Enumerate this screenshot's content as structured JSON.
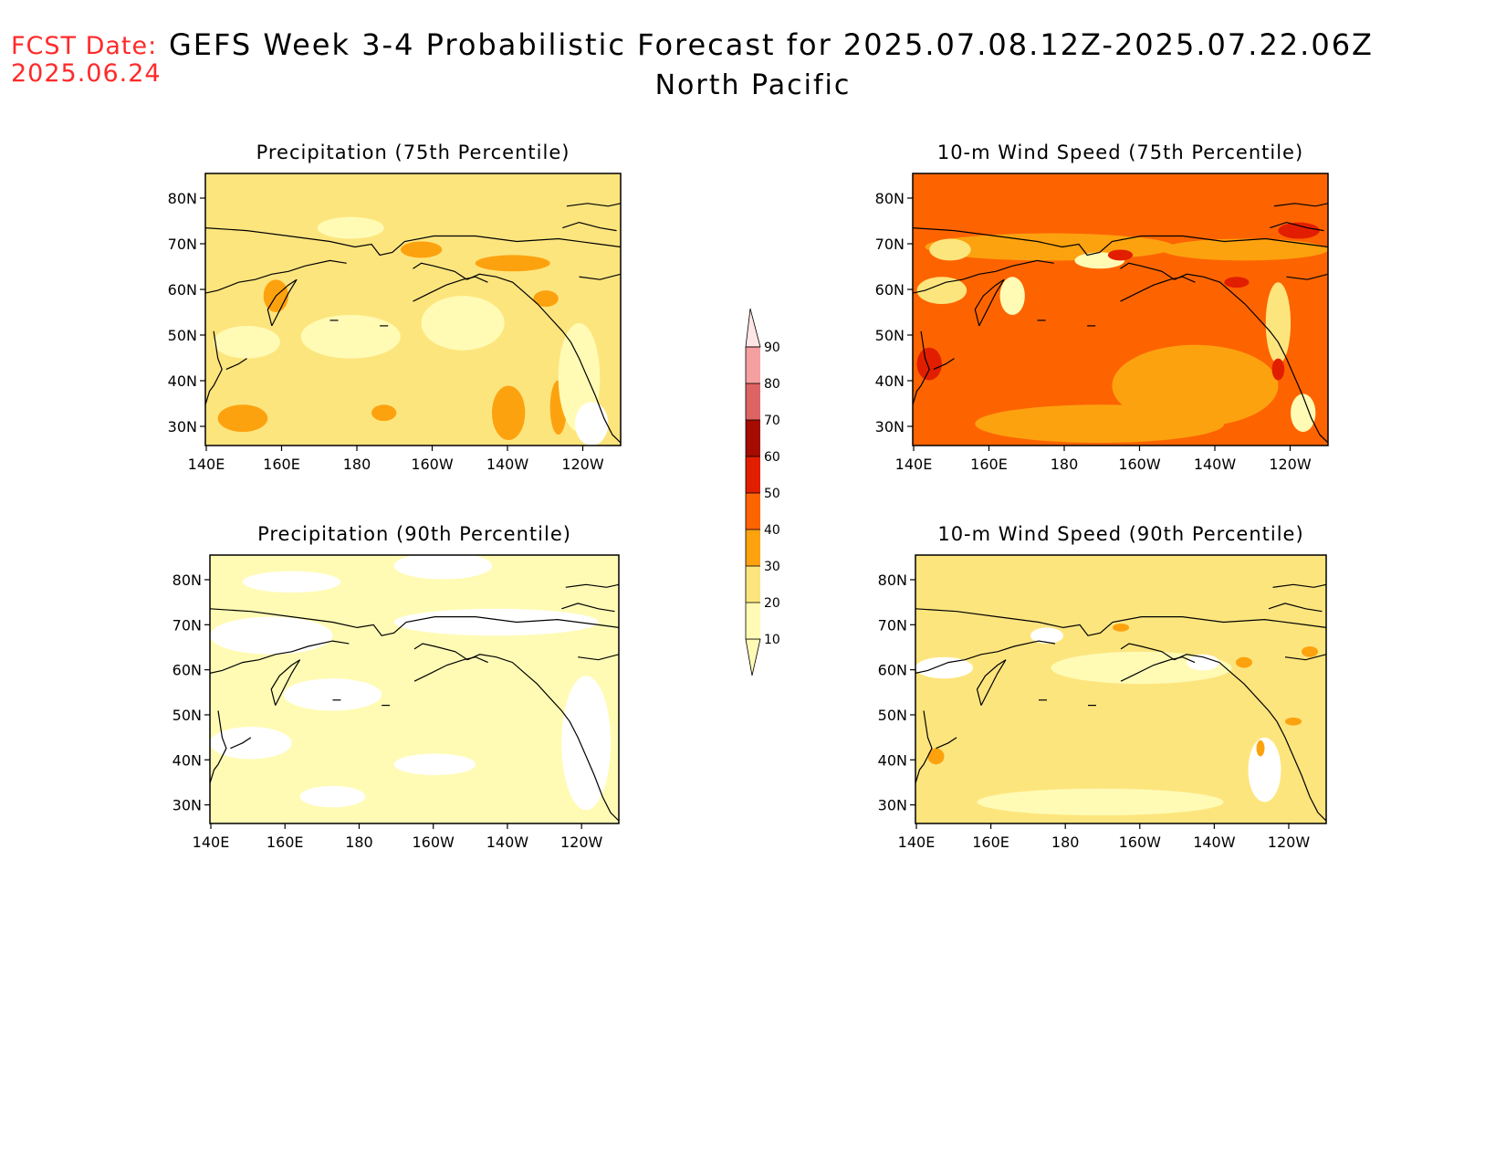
{
  "header": {
    "fcst_label": "FCST Date:",
    "fcst_date": "2025.06.24",
    "title": "GEFS Week 3-4 Probabilistic Forecast for 2025.07.08.12Z-2025.07.22.06Z",
    "subtitle": "North Pacific"
  },
  "map": {
    "lon_ticks": [
      "140E",
      "160E",
      "180",
      "160W",
      "140W",
      "120W"
    ],
    "lat_ticks": [
      "80N",
      "70N",
      "60N",
      "50N",
      "40N",
      "30N"
    ]
  },
  "panels": [
    {
      "id": "precip-75",
      "title": "Precipitation (75th Percentile)",
      "base_level": 20
    },
    {
      "id": "wind-75",
      "title": "10-m Wind Speed (75th Percentile)",
      "base_level": 40
    },
    {
      "id": "precip-90",
      "title": "Precipitation (90th Percentile)",
      "base_level": 10
    },
    {
      "id": "wind-90",
      "title": "10-m Wind Speed (90th Percentile)",
      "base_level": 20
    }
  ],
  "colorbar": {
    "labels": [
      "10",
      "20",
      "30",
      "40",
      "50",
      "60",
      "70",
      "80",
      "90"
    ],
    "colors": [
      "#fffbb5",
      "#fde57e",
      "#fda20f",
      "#fd6400",
      "#e21e00",
      "#a50b00",
      "#de6464",
      "#f5a0a0",
      "#ffe6e6"
    ]
  }
}
